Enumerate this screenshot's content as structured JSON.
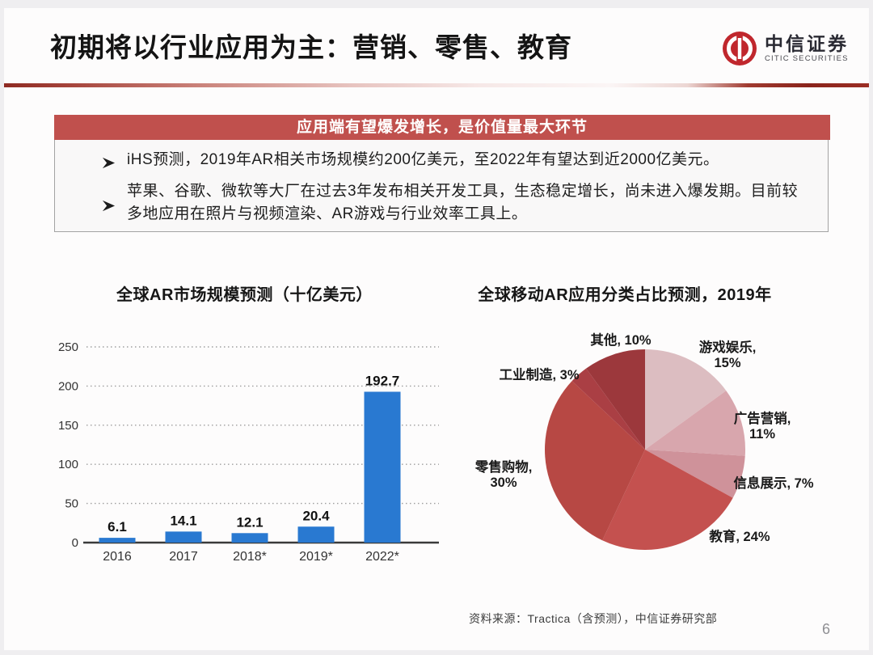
{
  "slide": {
    "title": "初期将以行业应用为主：营销、零售、教育",
    "page_number": "6",
    "logo": {
      "cn": "中信证券",
      "en": "CITIC SECURITIES",
      "brand_red": "#c0272d"
    },
    "banner": {
      "text": "应用端有望爆发增长，是价值量最大环节",
      "bg": "#c0504d",
      "text_color": "#ffffff"
    },
    "bullet_icon": "arrow-right",
    "bullets": [
      "iHS预测，2019年AR相关市场规模约200亿美元，至2022年有望达到近2000亿美元。",
      "苹果、谷歌、微软等大厂在过去3年发布相关开发工具，生态稳定增长，尚未进入爆发期。目前较多地应用在照片与视频渲染、AR游戏与行业效率工具上。"
    ],
    "source_note": "资料来源：Tractica（含预测），中信证券研究部"
  },
  "chart_data": [
    {
      "type": "bar",
      "title": "全球AR市场规模预测（十亿美元）",
      "categories": [
        "2016",
        "2017",
        "2018*",
        "2019*",
        "2022*"
      ],
      "values": [
        6.1,
        14.1,
        12.1,
        20.4,
        192.7
      ],
      "xlabel": "",
      "ylabel": "",
      "ylim": [
        0,
        250
      ],
      "ytick_step": 50,
      "grid": "dotted-horizontal",
      "legend": "none",
      "bar_color": "#2979d1",
      "axis_text_color": "#333333",
      "value_label_color": "#111111"
    },
    {
      "type": "pie",
      "title": "全球移动AR应用分类占比预测，2019年",
      "start_angle_deg": 0,
      "direction": "clockwise",
      "legend": "none",
      "label_color": "#1a1a1a",
      "slices": [
        {
          "label": "游戏娱乐",
          "value": 15,
          "color": "#dcbdc1",
          "two_line": true,
          "label_pos": [
            335,
            40
          ]
        },
        {
          "label": "广告营销",
          "value": 11,
          "color": "#d8a6ad",
          "two_line": true,
          "label_pos": [
            378,
            128
          ]
        },
        {
          "label": "信息展示",
          "value": 7,
          "color": "#cf929a",
          "two_line": false,
          "label_pos": [
            392,
            208
          ]
        },
        {
          "label": "教育",
          "value": 24,
          "color": "#c4514f",
          "two_line": false,
          "label_pos": [
            350,
            274
          ]
        },
        {
          "label": "零售购物",
          "value": 30,
          "color": "#b74844",
          "two_line": true,
          "label_pos": [
            58,
            188
          ]
        },
        {
          "label": "工业制造",
          "value": 3,
          "color": "#aa3f44",
          "two_line": false,
          "label_pos": [
            102,
            74
          ]
        },
        {
          "label": "其他",
          "value": 10,
          "color": "#9c383c",
          "two_line": false,
          "label_pos": [
            203,
            31
          ]
        }
      ]
    }
  ]
}
